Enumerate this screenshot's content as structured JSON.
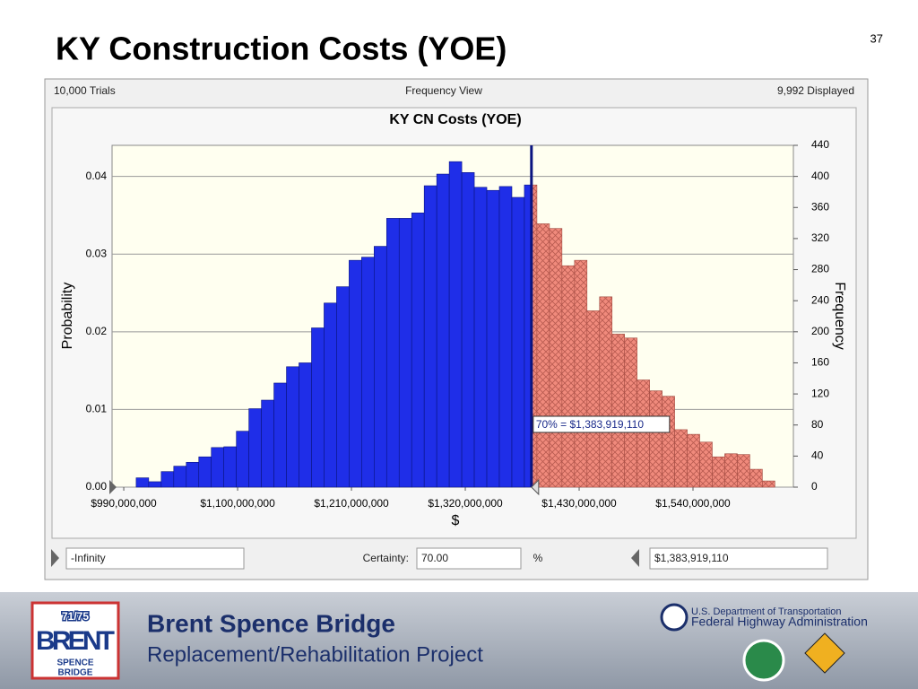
{
  "slide": {
    "title": "KY Construction Costs (YOE)",
    "page_number": "37"
  },
  "window": {
    "trials": "10,000 Trials",
    "view": "Frequency View",
    "displayed": "9,992 Displayed"
  },
  "chart_data": {
    "type": "histogram",
    "title": "KY CN Costs (YOE)",
    "x_label": "$",
    "y_label": "Probability",
    "y2_label": "Frequency",
    "annotation": "70% = $1,383,919,110",
    "threshold": 1383919110,
    "threshold_color": "#ee8070",
    "bins": [
      1002000000,
      1014100000,
      1026200000,
      1038300000,
      1050400000,
      1062500000,
      1074600000,
      1086700000,
      1098800000,
      1110900000,
      1123000000,
      1135100000,
      1147200000,
      1159300000,
      1171400000,
      1183500000,
      1195600000,
      1207700000,
      1219800000,
      1231900000,
      1244000000,
      1256100000,
      1268200000,
      1280300000,
      1292400000,
      1304500000,
      1316600000,
      1328700000,
      1340800000,
      1352900000,
      1365000000,
      1377100000,
      1389200000,
      1401300000,
      1413400000,
      1425500000,
      1437600000,
      1449700000,
      1461800000,
      1473900000,
      1486000000,
      1498100000,
      1510200000,
      1522300000,
      1534400000,
      1546500000,
      1558600000,
      1570700000,
      1582800000,
      1594900000,
      1607000000,
      1619100000
    ],
    "series": [
      {
        "color": "#1f2ee8",
        "axis": "y2",
        "values": [
          12,
          7,
          20,
          27,
          32,
          39,
          51,
          52,
          72,
          101,
          112,
          134,
          155,
          160,
          205,
          237,
          258,
          292,
          296,
          310,
          346,
          346,
          353,
          388,
          403,
          419,
          405,
          386,
          382,
          387,
          373,
          389,
          339,
          333,
          285,
          292,
          227,
          245,
          197,
          192,
          138,
          124,
          117,
          74,
          68,
          58,
          39,
          43,
          42,
          23,
          8
        ]
      }
    ],
    "xlim": [
      978700000,
      1637000000
    ],
    "xticks": [
      {
        "value": 990000000,
        "label": "$990,000,000"
      },
      {
        "value": 1100000000,
        "label": "$1,100,000,000"
      },
      {
        "value": 1210000000,
        "label": "$1,210,000,000"
      },
      {
        "value": 1320000000,
        "label": "$1,320,000,000"
      },
      {
        "value": 1430000000,
        "label": "$1,430,000,000"
      },
      {
        "value": 1540000000,
        "label": "$1,540,000,000"
      }
    ],
    "ylim": [
      0,
      0.044
    ],
    "yticks": [
      {
        "value": 0,
        "label": "0.00"
      },
      0.01,
      0.02,
      0.03,
      0.04
    ],
    "y2lim": [
      0,
      440
    ],
    "y2ticks": [
      0,
      40,
      80,
      120,
      160,
      200,
      240,
      280,
      320,
      360,
      400,
      440
    ],
    "grid": true
  },
  "controls": {
    "left_field": "-Infinity",
    "certainty_label": "Certainty:",
    "certainty_value": "70.00",
    "unit": "%",
    "right_field": "$1,383,919,110"
  },
  "footer": {
    "logo_route": "71/75",
    "logo_brent": "BRENT",
    "logo_spence": "SPENCE",
    "logo_bridge": "BRIDGE",
    "title": "Brent Spence Bridge",
    "subtitle": "Replacement/Rehabilitation Project",
    "dot": "U.S. Department of Transportation",
    "fhwa": "Federal Highway Administration"
  }
}
